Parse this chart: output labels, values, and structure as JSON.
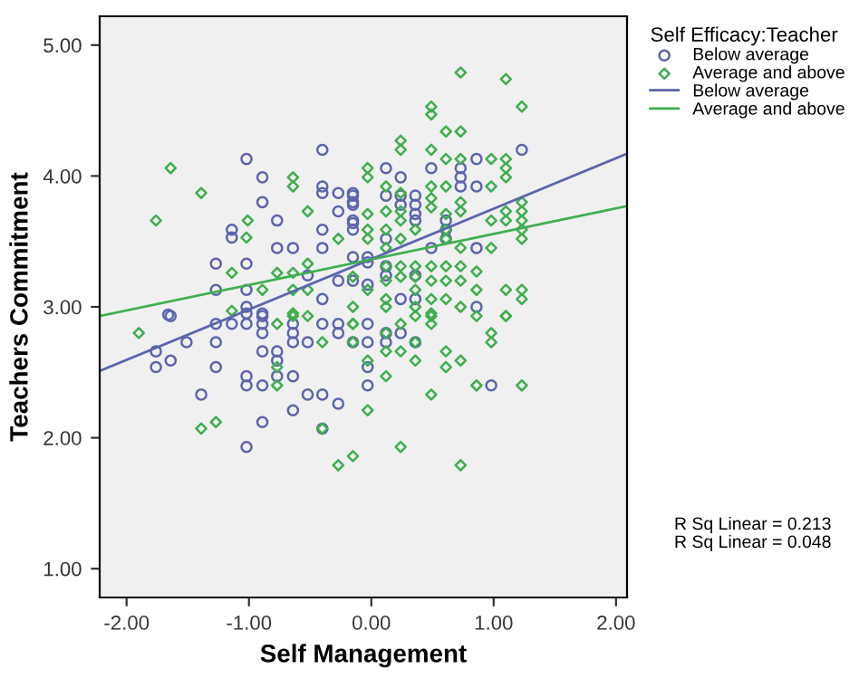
{
  "chart_data": {
    "type": "scatter",
    "xlabel": "Self Management",
    "ylabel": "Teachers Commitment",
    "legend_title": "Self Efficacy:Teacher",
    "legend": "top right",
    "grid": false,
    "xlim": [
      -2.22,
      2.09
    ],
    "ylim": [
      0.78,
      5.22
    ],
    "xticks": [
      {
        "value": -2,
        "label": "-2.00"
      },
      {
        "value": -1,
        "label": "-1.00"
      },
      {
        "value": 0,
        "label": "0.00"
      },
      {
        "value": 1,
        "label": "1.00"
      },
      {
        "value": 2,
        "label": "2.00"
      }
    ],
    "yticks": [
      {
        "value": 1,
        "label": "1.00"
      },
      {
        "value": 2,
        "label": "2.00"
      },
      {
        "value": 3,
        "label": "3.00"
      },
      {
        "value": 4,
        "label": "4.00"
      },
      {
        "value": 5,
        "label": "5.00"
      }
    ],
    "series": [
      {
        "name": "Below average",
        "marker": "circle",
        "color": "#5b64ad",
        "x": [
          -1.02,
          -0.4,
          -0.89,
          -0.89,
          -0.77,
          -1.14,
          -1.14,
          -1.27,
          -1.02,
          -0.77,
          -0.64,
          -1.27,
          -1.02,
          -1.66,
          -0.4,
          -0.4,
          -0.27,
          -0.15,
          -0.15,
          -0.4,
          -0.27,
          -0.4,
          -0.15,
          -0.52,
          -0.27,
          -0.4,
          -1.02,
          -0.89,
          1.23,
          0.12,
          0.49,
          0.24,
          0.73,
          0.73,
          0.86,
          0.86,
          0.73,
          -0.15,
          -0.15,
          -0.15,
          -0.15,
          0.12,
          0.24,
          0.24,
          0.36,
          0.36,
          0.36,
          0.36,
          0.61,
          0.61,
          0.61,
          0.12,
          -0.15,
          -0.03,
          0.49,
          0.86,
          0.12,
          0.12,
          0.36,
          -0.15,
          -0.03,
          -0.03,
          0.24,
          0.36,
          0.86,
          -1.64,
          -1.76,
          -1.76,
          -1.64,
          -1.51,
          -1.27,
          -1.14,
          -1.02,
          -1.02,
          -1.27,
          -1.27,
          -1.39,
          -1.02,
          -1.02,
          -0.89,
          -0.89,
          -0.89,
          -0.89,
          -0.89,
          -0.77,
          -0.77,
          -0.77,
          -0.64,
          -0.64,
          -0.64,
          -0.64,
          -0.52,
          -0.4,
          -0.27,
          -0.27,
          -0.52,
          -0.4,
          -0.27,
          -0.64,
          -0.89,
          -1.02,
          -0.4,
          -0.03,
          -0.03,
          -0.15,
          0.12,
          0.12,
          0.24,
          0.36,
          -0.03,
          -0.03,
          0.98
        ],
        "values": [
          4.13,
          4.2,
          3.99,
          3.8,
          3.66,
          3.59,
          3.53,
          3.33,
          3.33,
          3.45,
          3.45,
          3.13,
          3.13,
          2.94,
          3.92,
          3.87,
          3.87,
          3.87,
          3.8,
          3.59,
          3.73,
          3.45,
          3.66,
          3.24,
          3.2,
          3.06,
          3.0,
          2.95,
          4.2,
          4.06,
          4.06,
          3.99,
          4.06,
          3.99,
          4.13,
          3.92,
          3.92,
          3.85,
          3.78,
          3.64,
          3.59,
          3.85,
          3.85,
          3.78,
          3.85,
          3.78,
          3.71,
          3.66,
          3.66,
          3.59,
          3.52,
          3.52,
          3.38,
          3.38,
          3.45,
          3.45,
          3.31,
          3.24,
          3.24,
          3.2,
          3.34,
          3.17,
          3.06,
          3.06,
          3.0,
          2.93,
          2.66,
          2.54,
          2.59,
          2.73,
          2.87,
          2.87,
          2.87,
          2.95,
          2.73,
          2.54,
          2.33,
          2.47,
          2.4,
          2.4,
          2.93,
          2.87,
          2.8,
          2.66,
          2.66,
          2.59,
          2.47,
          2.47,
          2.87,
          2.8,
          2.73,
          2.73,
          2.87,
          2.87,
          2.8,
          2.33,
          2.33,
          2.26,
          2.21,
          2.12,
          1.93,
          2.07,
          2.87,
          2.73,
          2.73,
          2.8,
          2.73,
          2.8,
          2.73,
          2.54,
          2.4,
          2.4
        ]
      },
      {
        "name": "Average and above",
        "marker": "diamond",
        "color": "#3fae4f",
        "x": [
          -1.64,
          -1.39,
          -1.76,
          -0.64,
          -0.64,
          -1.01,
          -0.52,
          -1.02,
          -0.52,
          -0.27,
          -1.14,
          -0.89,
          -0.64,
          -0.52,
          -0.64,
          -0.77,
          -1.14,
          -0.64,
          0.73,
          1.1,
          1.23,
          0.49,
          0.49,
          0.61,
          0.73,
          0.24,
          0.24,
          0.49,
          0.61,
          0.73,
          0.98,
          1.1,
          1.1,
          1.1,
          -0.03,
          -0.03,
          0.49,
          0.61,
          0.98,
          0.12,
          0.24,
          0.49,
          0.49,
          0.73,
          0.73,
          1.1,
          1.1,
          1.23,
          1.23,
          1.23,
          1.23,
          0.98,
          1.23,
          0.61,
          0.61,
          0.61,
          0.73,
          0.98,
          -0.03,
          -0.03,
          -0.03,
          0.12,
          0.12,
          0.12,
          0.24,
          0.24,
          0.24,
          0.24,
          0.24,
          0.36,
          0.49,
          0.49,
          0.49,
          0.49,
          0.61,
          0.61,
          0.61,
          0.73,
          0.73,
          0.73,
          0.86,
          0.86,
          1.1,
          1.23,
          1.23,
          1.1,
          0.36,
          0.36,
          0.36,
          0.36,
          0.12,
          0.12,
          0.12,
          0.12,
          -0.15,
          -0.15,
          -0.03,
          -1.9,
          -1.39,
          -1.27,
          -0.77,
          -0.77,
          -0.52,
          -0.64,
          -0.77,
          -0.4,
          -0.15,
          -0.15,
          -0.4,
          -0.27,
          -0.15,
          -0.15,
          0.12,
          0.12,
          0.24,
          0.24,
          0.36,
          0.36,
          0.36,
          0.49,
          0.49,
          0.49,
          0.61,
          0.61,
          0.73,
          0.86,
          0.86,
          0.98,
          0.98,
          1.1,
          1.23,
          0.12,
          -0.03,
          0.24,
          0.73,
          -0.03
        ],
        "values": [
          4.06,
          3.87,
          3.66,
          3.99,
          3.92,
          3.66,
          3.73,
          3.53,
          3.33,
          3.52,
          3.26,
          3.13,
          3.13,
          3.13,
          3.26,
          3.26,
          2.97,
          2.95,
          4.79,
          4.74,
          4.53,
          4.53,
          4.47,
          4.34,
          4.34,
          4.27,
          4.2,
          4.2,
          4.13,
          4.13,
          4.13,
          4.13,
          4.06,
          3.99,
          4.06,
          3.99,
          3.92,
          3.92,
          3.92,
          3.92,
          3.87,
          3.83,
          3.76,
          3.8,
          3.73,
          3.73,
          3.66,
          3.8,
          3.73,
          3.66,
          3.59,
          3.66,
          3.52,
          3.71,
          3.59,
          3.52,
          3.45,
          3.45,
          3.71,
          3.59,
          3.52,
          3.73,
          3.59,
          3.45,
          3.73,
          3.66,
          3.52,
          3.31,
          3.23,
          3.59,
          3.31,
          3.2,
          3.06,
          2.95,
          3.31,
          3.2,
          3.06,
          3.31,
          3.2,
          3.0,
          3.27,
          3.13,
          3.13,
          3.13,
          3.06,
          2.93,
          3.31,
          3.23,
          3.13,
          3.0,
          3.31,
          3.2,
          3.06,
          3.0,
          3.23,
          3.0,
          3.13,
          2.8,
          2.07,
          2.12,
          2.54,
          2.4,
          2.93,
          2.93,
          2.87,
          2.73,
          2.73,
          2.87,
          2.07,
          1.79,
          1.86,
          2.87,
          2.8,
          2.66,
          2.87,
          2.66,
          2.93,
          2.73,
          2.59,
          2.93,
          2.87,
          2.33,
          2.66,
          2.54,
          2.59,
          2.93,
          2.4,
          2.8,
          2.73,
          2.93,
          2.4,
          2.47,
          2.21,
          1.93,
          1.79,
          2.59
        ]
      },
      {
        "name": "Below average",
        "type": "line",
        "marker": "none",
        "line_style": "solid",
        "color": "#5b64ad",
        "x": [
          -2.22,
          2.09
        ],
        "values": [
          2.51,
          4.17
        ]
      },
      {
        "name": "Average and above",
        "type": "line",
        "marker": "none",
        "line_style": "solid",
        "color": "#3fae4f",
        "x": [
          -2.22,
          2.09
        ],
        "values": [
          2.93,
          3.77
        ]
      }
    ],
    "annotations": [
      "R Sq Linear = 0.213",
      "R Sq Linear = 0.048"
    ]
  }
}
